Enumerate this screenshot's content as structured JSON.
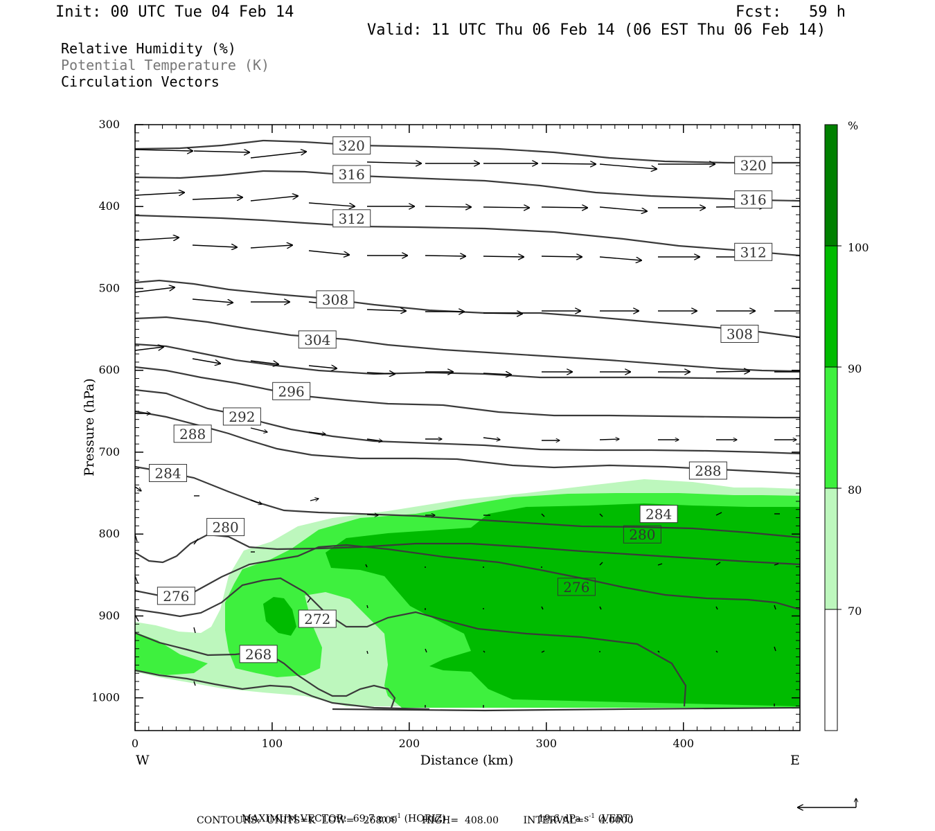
{
  "header": {
    "init": "Init: 00 UTC Tue 04 Feb 14",
    "fcst": "Fcst:   59 h",
    "valid": "Valid: 11 UTC Thu 06 Feb 14 (06 EST Thu 06 Feb 14)"
  },
  "legend": {
    "rh": "Relative Humidity (%)",
    "theta": "Potential Temperature (K)",
    "vectors": "Circulation Vectors"
  },
  "colors": {
    "rh70": "#bdf7bd",
    "rh80": "#3ef03e",
    "rh90": "#00bb00",
    "rh100": "#008000",
    "contour": "#3a3a3a"
  },
  "chart_data": {
    "type": "heatmap",
    "xlabel": "Distance (km)",
    "ylabel": "Pressure (hPa)",
    "x_ticks": [
      0,
      100,
      200,
      300,
      400
    ],
    "y_ticks": [
      300,
      400,
      500,
      600,
      700,
      800,
      900,
      1000
    ],
    "xlim": [
      0,
      485
    ],
    "ylim": [
      1040,
      300
    ],
    "x_end_labels": {
      "west": "W",
      "east": "E"
    },
    "colorbar": {
      "unit": "%",
      "levels": [
        70,
        80,
        90,
        100
      ]
    },
    "contour_labels": [
      {
        "v": "320",
        "x": 158,
        "p": 325
      },
      {
        "v": "320",
        "x": 451,
        "p": 349
      },
      {
        "v": "316",
        "x": 158,
        "p": 360
      },
      {
        "v": "316",
        "x": 451,
        "p": 391
      },
      {
        "v": "312",
        "x": 158,
        "p": 414
      },
      {
        "v": "312",
        "x": 451,
        "p": 455
      },
      {
        "v": "308",
        "x": 146,
        "p": 513
      },
      {
        "v": "308",
        "x": 441,
        "p": 555
      },
      {
        "v": "304",
        "x": 133,
        "p": 562
      },
      {
        "v": "296",
        "x": 114,
        "p": 625
      },
      {
        "v": "292",
        "x": 78,
        "p": 656
      },
      {
        "v": "288",
        "x": 42,
        "p": 677
      },
      {
        "v": "288",
        "x": 418,
        "p": 722
      },
      {
        "v": "284",
        "x": 24,
        "p": 725
      },
      {
        "v": "284",
        "x": 382,
        "p": 775
      },
      {
        "v": "280",
        "x": 66,
        "p": 791
      },
      {
        "v": "280",
        "x": 370,
        "p": 800
      },
      {
        "v": "276",
        "x": 30,
        "p": 875
      },
      {
        "v": "276",
        "x": 322,
        "p": 864
      },
      {
        "v": "272",
        "x": 133,
        "p": 903
      },
      {
        "v": "268",
        "x": 90,
        "p": 946
      }
    ]
  },
  "footer": {
    "max_vector": "MAXIMUM VECTOR:  69.7 m s",
    "horiz": "(HORIZ)",
    "vert_val": "19.6 dPa s",
    "vert": "(VERT)",
    "exp": "-1",
    "contours": "CONTOURS:  UNITS=K  LOW=   268.00        HIGH=  408.00        INTERVAL=     4.0000"
  }
}
